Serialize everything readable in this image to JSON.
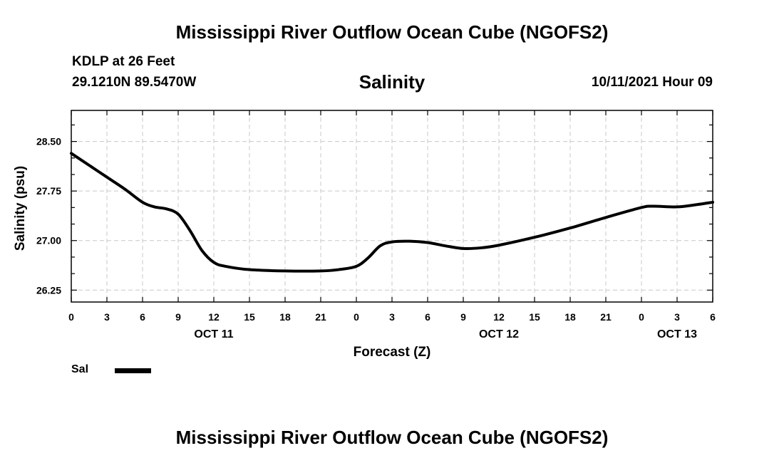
{
  "header": {
    "title": "Mississippi River Outflow Ocean Cube (NGOFS2)",
    "station": "KDLP at 26 Feet",
    "coords": "29.1210N  89.5470W",
    "datetime": "10/11/2021 Hour 09"
  },
  "footer": {
    "title": "Mississippi River Outflow Ocean Cube (NGOFS2)"
  },
  "legend": {
    "label": "Sal",
    "color": "#000000"
  },
  "chart_data": {
    "type": "line",
    "title": "Salinity",
    "xlabel": "Forecast (Z)",
    "ylabel": "Salinity (psu)",
    "xlim": [
      0,
      54
    ],
    "ylim": [
      26.07,
      28.97
    ],
    "grid": true,
    "x_ticks": [
      0,
      3,
      6,
      9,
      12,
      15,
      18,
      21,
      24,
      27,
      30,
      33,
      36,
      39,
      42,
      45,
      48,
      51,
      54
    ],
    "x_tick_labels": [
      "0",
      "3",
      "6",
      "9",
      "12",
      "15",
      "18",
      "21",
      "0",
      "3",
      "6",
      "9",
      "12",
      "15",
      "18",
      "21",
      "0",
      "3",
      "6"
    ],
    "y_ticks": [
      26.25,
      27.0,
      27.75,
      28.5
    ],
    "y_tick_labels": [
      "26.25",
      "27.00",
      "27.75",
      "28.50"
    ],
    "date_labels": [
      {
        "x": 12,
        "label": "OCT 11"
      },
      {
        "x": 36,
        "label": "OCT 12"
      },
      {
        "x": 51,
        "label": "OCT 13"
      }
    ],
    "series": [
      {
        "name": "Sal",
        "x": [
          0,
          1.5,
          3,
          4.5,
          6,
          7,
          8,
          9,
          10,
          11,
          12,
          13,
          15,
          18,
          21,
          22.5,
          24,
          25,
          26,
          27,
          28.5,
          30,
          31.5,
          33,
          34.5,
          36,
          39,
          42,
          45,
          48,
          49,
          51,
          52.5,
          54
        ],
        "y": [
          28.32,
          28.14,
          27.96,
          27.78,
          27.58,
          27.51,
          27.48,
          27.4,
          27.15,
          26.85,
          26.67,
          26.61,
          26.56,
          26.54,
          26.54,
          26.56,
          26.61,
          26.74,
          26.92,
          26.98,
          26.99,
          26.97,
          26.92,
          26.88,
          26.89,
          26.93,
          27.05,
          27.19,
          27.35,
          27.5,
          27.52,
          27.51,
          27.54,
          27.58
        ]
      }
    ]
  }
}
